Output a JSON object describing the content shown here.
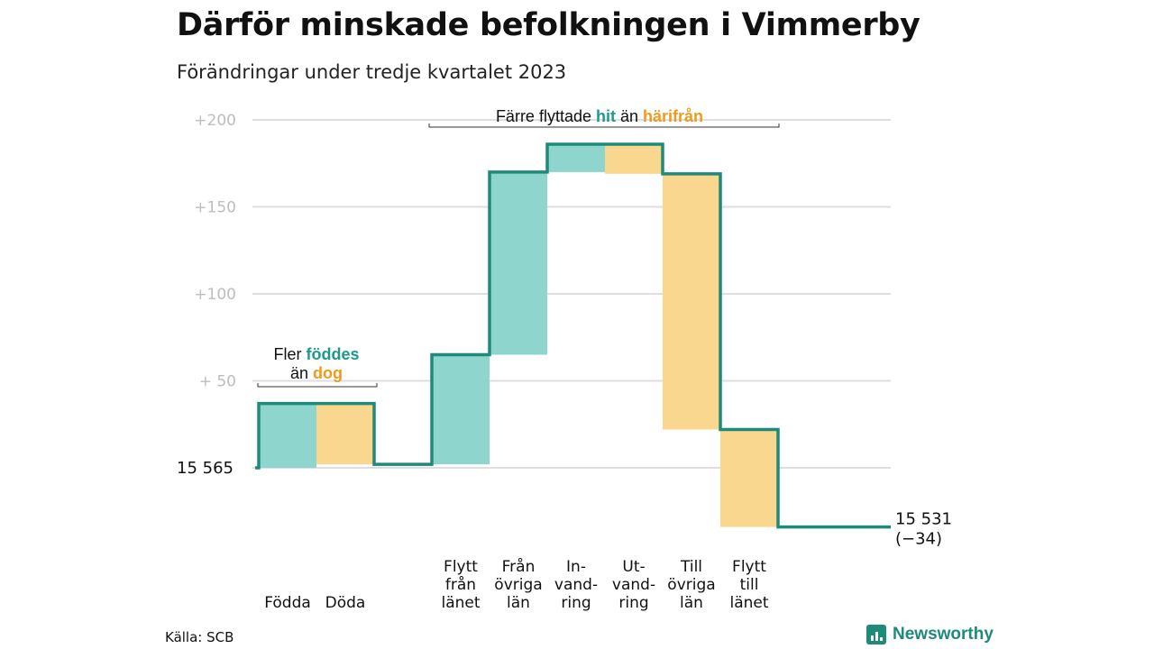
{
  "title": "Därför minskade befolkningen i Vimmerby",
  "subtitle": "Förändringar under tredje kvartalet 2023",
  "source": "Källa: SCB",
  "brand": "Newsworthy",
  "colors": {
    "increase": "#8dd5cd",
    "decrease": "#fad78f",
    "line": "#1e8a7a",
    "hit": "#1e9a8a",
    "from": "#ee9a1a"
  },
  "chart_data": {
    "type": "waterfall",
    "start_value": 15565,
    "start_label": "15  565",
    "end_value": 15531,
    "end_label": "15 531",
    "end_change": "(−34)",
    "y_ticks": [
      {
        "value": 200,
        "label": "+200"
      },
      {
        "value": 150,
        "label": "+150"
      },
      {
        "value": 100,
        "label": "+100"
      },
      {
        "value": 50,
        "label": "+  50"
      }
    ],
    "ylim": [
      -34,
      200
    ],
    "grid": true,
    "steps": [
      {
        "lines": [
          "Födda"
        ],
        "change": 37,
        "kind": "increase"
      },
      {
        "lines": [
          "Döda"
        ],
        "change": -35,
        "kind": "decrease"
      },
      {
        "lines": [],
        "change": 0,
        "kind": "gap"
      },
      {
        "lines": [
          "Flytt",
          "från",
          "länet"
        ],
        "change": 63,
        "kind": "increase"
      },
      {
        "lines": [
          "Från",
          "övriga",
          "län"
        ],
        "change": 105,
        "kind": "increase"
      },
      {
        "lines": [
          "In-",
          "vand-",
          "ring"
        ],
        "change": 16,
        "kind": "increase"
      },
      {
        "lines": [
          "Ut-",
          "vand-",
          "ring"
        ],
        "change": -17,
        "kind": "decrease"
      },
      {
        "lines": [
          "Till",
          "övriga",
          "län"
        ],
        "change": -147,
        "kind": "decrease"
      },
      {
        "lines": [
          "Flytt",
          "till",
          "länet"
        ],
        "change": -56,
        "kind": "decrease"
      }
    ],
    "annotations": [
      {
        "lines": [
          [
            {
              "text": "Fler "
            },
            {
              "text": "föddes",
              "color": "hit"
            }
          ],
          [
            {
              "text": "än "
            },
            {
              "text": "dog",
              "color": "from"
            }
          ]
        ]
      },
      {
        "lines": [
          [
            {
              "text": "Färre flyttade "
            },
            {
              "text": "hit",
              "color": "hit"
            },
            {
              "text": " än "
            },
            {
              "text": "härifrån",
              "color": "from"
            }
          ]
        ]
      }
    ]
  }
}
